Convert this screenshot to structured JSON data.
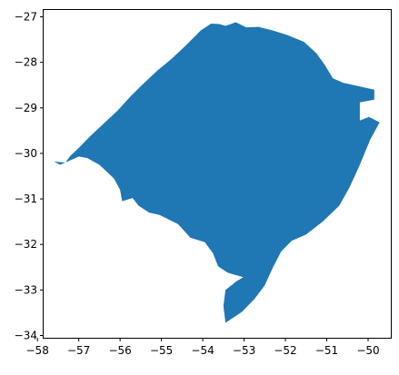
{
  "chart_data": {
    "type": "map",
    "title": "",
    "xlabel": "",
    "ylabel": "",
    "xlim": [
      -57.85,
      -49.45
    ],
    "ylim": [
      -34.05,
      -26.85
    ],
    "grid": false,
    "x_ticks": [
      -58,
      -57,
      -56,
      -55,
      -54,
      -53,
      -52,
      -51,
      -50
    ],
    "y_ticks": [
      -27,
      -28,
      -29,
      -30,
      -31,
      -32,
      -33,
      -34
    ],
    "x_tick_labels": [
      "−58",
      "−57",
      "−56",
      "−55",
      "−54",
      "−53",
      "−52",
      "−51",
      "−50"
    ],
    "y_tick_labels": [
      "−27",
      "−28",
      "−29",
      "−30",
      "−31",
      "−32",
      "−33",
      "−34"
    ],
    "fill_color": "#1f77b4",
    "region_outline": [
      [
        -57.6,
        -30.18
      ],
      [
        -57.32,
        -30.2
      ],
      [
        -57.2,
        -30.05
      ],
      [
        -57.0,
        -29.88
      ],
      [
        -56.72,
        -29.62
      ],
      [
        -56.4,
        -29.35
      ],
      [
        -56.05,
        -29.05
      ],
      [
        -55.75,
        -28.75
      ],
      [
        -55.45,
        -28.48
      ],
      [
        -55.1,
        -28.18
      ],
      [
        -54.75,
        -27.92
      ],
      [
        -54.4,
        -27.62
      ],
      [
        -54.05,
        -27.3
      ],
      [
        -53.8,
        -27.15
      ],
      [
        -53.6,
        -27.16
      ],
      [
        -53.45,
        -27.2
      ],
      [
        -53.2,
        -27.12
      ],
      [
        -52.95,
        -27.23
      ],
      [
        -52.65,
        -27.22
      ],
      [
        -52.3,
        -27.3
      ],
      [
        -51.95,
        -27.4
      ],
      [
        -51.55,
        -27.55
      ],
      [
        -51.25,
        -27.8
      ],
      [
        -51.05,
        -28.05
      ],
      [
        -50.85,
        -28.35
      ],
      [
        -50.6,
        -28.45
      ],
      [
        -50.35,
        -28.5
      ],
      [
        -49.85,
        -28.6
      ],
      [
        -49.85,
        -28.82
      ],
      [
        -50.2,
        -28.88
      ],
      [
        -50.2,
        -29.28
      ],
      [
        -49.98,
        -29.2
      ],
      [
        -49.72,
        -29.32
      ],
      [
        -49.95,
        -29.7
      ],
      [
        -50.2,
        -30.25
      ],
      [
        -50.45,
        -30.75
      ],
      [
        -50.7,
        -31.15
      ],
      [
        -51.1,
        -31.5
      ],
      [
        -51.5,
        -31.78
      ],
      [
        -51.85,
        -31.92
      ],
      [
        -52.1,
        -32.15
      ],
      [
        -52.3,
        -32.5
      ],
      [
        -52.5,
        -32.9
      ],
      [
        -52.75,
        -33.2
      ],
      [
        -53.05,
        -33.48
      ],
      [
        -53.45,
        -33.72
      ],
      [
        -53.5,
        -33.35
      ],
      [
        -53.45,
        -33.0
      ],
      [
        -53.2,
        -32.82
      ],
      [
        -53.02,
        -32.72
      ],
      [
        -53.4,
        -32.62
      ],
      [
        -53.63,
        -32.48
      ],
      [
        -53.75,
        -32.2
      ],
      [
        -53.95,
        -31.95
      ],
      [
        -54.3,
        -31.85
      ],
      [
        -54.6,
        -31.55
      ],
      [
        -55.05,
        -31.35
      ],
      [
        -55.3,
        -31.3
      ],
      [
        -55.55,
        -31.15
      ],
      [
        -55.7,
        -30.98
      ],
      [
        -55.95,
        -31.05
      ],
      [
        -56.0,
        -30.8
      ],
      [
        -56.15,
        -30.55
      ],
      [
        -56.5,
        -30.25
      ],
      [
        -56.8,
        -30.1
      ],
      [
        -57.0,
        -30.07
      ],
      [
        -57.2,
        -30.15
      ],
      [
        -57.45,
        -30.25
      ],
      [
        -57.6,
        -30.18
      ]
    ]
  }
}
